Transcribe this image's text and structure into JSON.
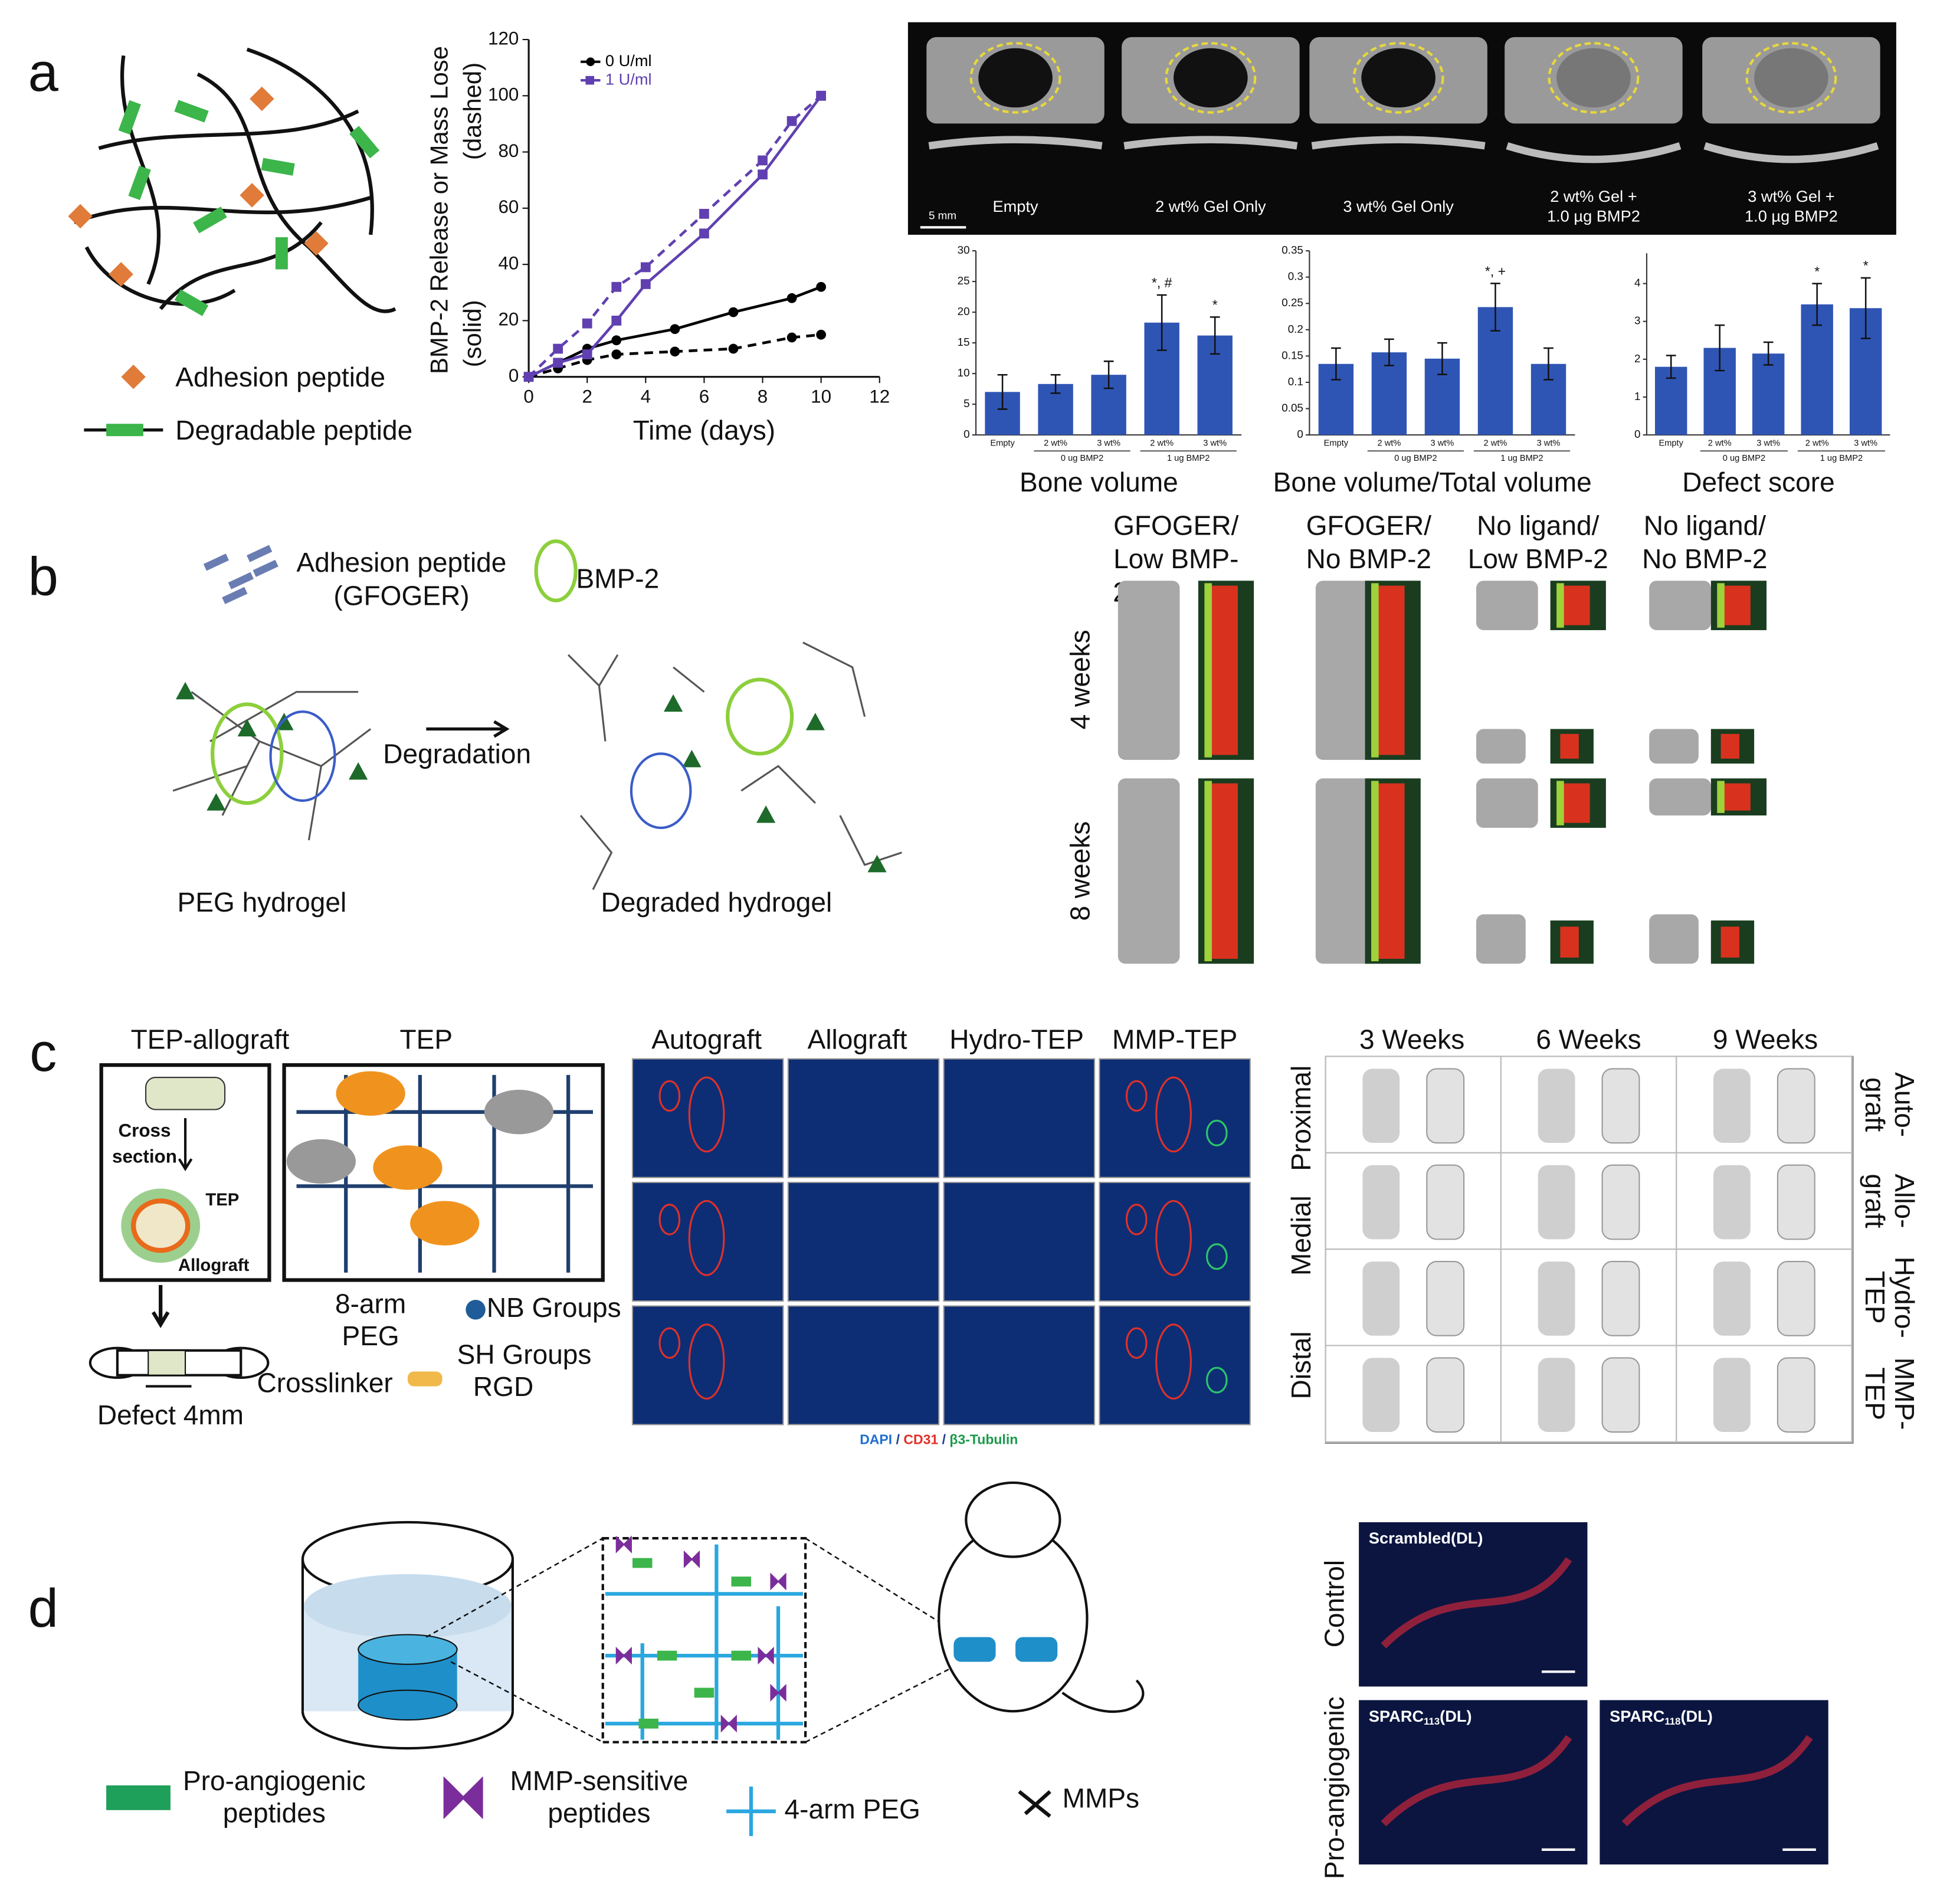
{
  "figure": {
    "panel_labels": [
      "a",
      "b",
      "c",
      "d"
    ],
    "a": {
      "legend": [
        "Adhesion peptide",
        "Degradable peptide"
      ],
      "ct_labels": [
        [
          "Empty"
        ],
        [
          "2 wt% Gel Only"
        ],
        [
          "3 wt% Gel Only"
        ],
        [
          "2 wt% Gel +",
          "1.0 µg BMP2"
        ],
        [
          "3 wt% Gel +",
          "1.0 µg BMP2"
        ]
      ],
      "scale_bar": "5 mm"
    },
    "b": {
      "legend_adhesion": [
        "Adhesion peptide",
        "(GFOGER)"
      ],
      "legend_bmp": "BMP-2",
      "arrow": "Degradation",
      "captions": [
        "PEG hydrogel",
        "Degraded hydrogel"
      ],
      "column_headers": [
        [
          "GFOGER/",
          "Low BMP-",
          "2"
        ],
        [
          "GFOGER/",
          "No BMP-2"
        ],
        [
          "No ligand/",
          "Low BMP-2"
        ],
        [
          "No ligand/",
          "No BMP-2"
        ]
      ],
      "row_labels": [
        "4 weeks",
        "8 weeks"
      ]
    },
    "c": {
      "schematic_titles": [
        "TEP-allograft",
        "TEP"
      ],
      "cross_section": [
        "Cross",
        "section"
      ],
      "tep_label": "TEP",
      "allograft_label": "Allograft",
      "legend": {
        "arm": [
          "8-arm",
          "PEG"
        ],
        "nb": "NB Groups",
        "sh": "SH Groups",
        "crosslinker": "Crosslinker",
        "rgd": "RGD"
      },
      "defect": "Defect 4mm",
      "stain_columns": [
        "Autograft",
        "Allograft",
        "Hydro-TEP",
        "MMP-TEP"
      ],
      "stain_legend": [
        {
          "text": "DAPI",
          "color": "#1f6fd0"
        },
        {
          "text": " / ",
          "color": "#1f3f8f"
        },
        {
          "text": "CD31",
          "color": "#e0302a"
        },
        {
          "text": " / ",
          "color": "#1f3f8f"
        },
        {
          "text": "β3-Tubulin",
          "color": "#1a9a4a"
        }
      ],
      "ct_columns": [
        "3 Weeks",
        "6 Weeks",
        "9 Weeks"
      ],
      "ct_rows": [
        "Proximal",
        "Medial",
        "Distal"
      ],
      "graft_labels": [
        [
          "Auto-",
          "graft"
        ],
        [
          "Allo-",
          "graft"
        ],
        [
          "Hydro-",
          "TEP"
        ],
        [
          "MMP-",
          "TEP"
        ]
      ]
    },
    "d": {
      "legend": [
        [
          "Pro-angiogenic",
          "peptides"
        ],
        [
          "MMP-sensitive",
          "peptides"
        ],
        [
          "4-arm PEG"
        ],
        [
          "MMPs"
        ]
      ],
      "row_labels": [
        "Control",
        "Pro-angiogenic"
      ],
      "image_labels": [
        {
          "text": "Scrambled(DL)"
        },
        {
          "text": "SPARC",
          "sub": "113",
          "suffix": "(DL)"
        },
        {
          "text": "SPARC",
          "sub": "118",
          "suffix": "(DL)"
        }
      ]
    }
  },
  "chart_data": [
    {
      "type": "line",
      "x_label": "Time (days)",
      "y_label": [
        "BMP-2 Release or Mass Lose",
        "(solid)",
        "(dashed)"
      ],
      "xlim": [
        0,
        12
      ],
      "xticks": [
        0,
        2,
        4,
        6,
        8,
        10,
        12
      ],
      "ylim": [
        0,
        120
      ],
      "yticks": [
        0,
        20,
        40,
        60,
        80,
        100,
        120
      ],
      "series": [
        {
          "name": "0 U/ml",
          "color": "#000000",
          "marker": "circle",
          "x": [
            0,
            1,
            2,
            3,
            5,
            7,
            9,
            10
          ],
          "values": [
            0,
            5,
            10,
            13,
            17,
            23,
            28,
            32
          ],
          "dashed_x": [
            0,
            1,
            2,
            3,
            5,
            7,
            9,
            10
          ],
          "dashed_values": [
            0,
            3,
            6,
            8,
            9,
            10,
            14,
            15
          ]
        },
        {
          "name": "1 U/ml",
          "color": "#6040b0",
          "marker": "square",
          "x": [
            0,
            1,
            2,
            3,
            4,
            6,
            8,
            10
          ],
          "values": [
            0,
            5,
            8,
            20,
            33,
            51,
            72,
            100
          ],
          "dashed_x": [
            0,
            1,
            2,
            3,
            4,
            6,
            8,
            9,
            10
          ],
          "dashed_values": [
            0,
            10,
            19,
            32,
            39,
            58,
            77,
            91,
            100
          ]
        }
      ]
    },
    {
      "type": "bar",
      "title": "Bone volume",
      "categories": [
        "Empty",
        "2 wt%",
        "3 wt%",
        "2 wt%",
        "3 wt%"
      ],
      "groups": [
        "0 ug BMP2",
        "1 ug BMP2"
      ],
      "values": [
        7,
        8.3,
        9.8,
        18.3,
        16.2
      ],
      "errors": [
        2.8,
        1.5,
        2.2,
        4.5,
        3
      ],
      "annotations": [
        null,
        null,
        null,
        "*, #",
        "*"
      ],
      "color": "#2f55b4",
      "ylim": [
        0,
        30
      ],
      "yticks": [
        0,
        5,
        10,
        15,
        20,
        25,
        30
      ]
    },
    {
      "type": "bar",
      "title": "Bone volume/Total volume",
      "categories": [
        "Empty",
        "2 wt%",
        "3 wt%",
        "2 wt%",
        "3 wt%"
      ],
      "groups": [
        "0 ug BMP2",
        "1 ug BMP2"
      ],
      "values": [
        0.135,
        0.157,
        0.145,
        0.243,
        0.135
      ],
      "errors": [
        0.03,
        0.025,
        0.03,
        0.045,
        0.03
      ],
      "annotations": [
        null,
        null,
        null,
        "*, +",
        null
      ],
      "color": "#2f55b4",
      "ylim": [
        0,
        0.35
      ],
      "yticks": [
        0,
        0.05,
        0.1,
        0.15,
        0.2,
        0.25,
        0.3,
        0.35
      ]
    },
    {
      "type": "bar",
      "title": "Defect score",
      "categories": [
        "Empty",
        "2 wt%",
        "3 wt%",
        "2 wt%",
        "3 wt%"
      ],
      "groups": [
        "0 ug BMP2",
        "1 ug BMP2"
      ],
      "values": [
        1.8,
        2.3,
        2.15,
        3.45,
        3.35
      ],
      "errors": [
        0.3,
        0.6,
        0.3,
        0.55,
        0.8
      ],
      "annotations": [
        null,
        null,
        null,
        "*",
        "*"
      ],
      "color": "#2f55b4",
      "ylim": [
        0,
        4.8
      ],
      "yticks": [
        0,
        1,
        2,
        3,
        4
      ]
    }
  ]
}
